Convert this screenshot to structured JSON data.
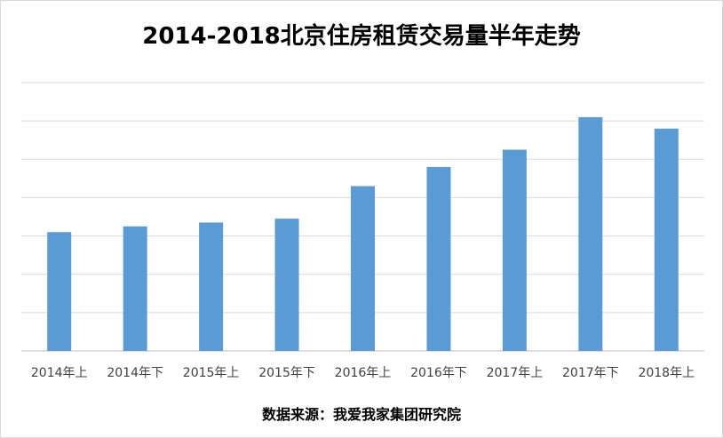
{
  "chart_data": {
    "type": "bar",
    "title": "2014-2018北京住房租赁交易量半年走势",
    "categories": [
      "2014年上",
      "2014年下",
      "2015年上",
      "2015年下",
      "2016年上",
      "2016年下",
      "2017年上",
      "2017年下",
      "2018年上"
    ],
    "values": [
      31,
      32.5,
      33.5,
      34.5,
      43,
      48,
      52.5,
      61,
      58
    ],
    "ylim": [
      0,
      70
    ],
    "grid": true,
    "bar_color": "#5b9bd5",
    "source": "数据来源：我爱我家集团研究院"
  }
}
